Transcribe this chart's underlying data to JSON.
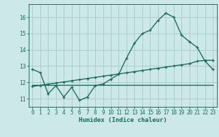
{
  "xlabel": "Humidex (Indice chaleur)",
  "background_color": "#cce8e8",
  "grid_color": "#aacccc",
  "line_color": "#1a6b5a",
  "xlim": [
    -0.5,
    23.5
  ],
  "ylim": [
    10.5,
    16.8
  ],
  "yticks": [
    11,
    12,
    13,
    14,
    15,
    16
  ],
  "xticks": [
    0,
    1,
    2,
    3,
    4,
    5,
    6,
    7,
    8,
    9,
    10,
    11,
    12,
    13,
    14,
    15,
    16,
    17,
    18,
    19,
    20,
    21,
    22,
    23
  ],
  "line1_x": [
    0,
    1,
    2,
    3,
    4,
    5,
    6,
    7,
    8,
    9,
    10,
    11,
    12,
    13,
    14,
    15,
    16,
    17,
    18,
    19,
    20,
    21,
    22,
    23
  ],
  "line1_y": [
    12.8,
    12.6,
    11.3,
    11.8,
    11.1,
    11.7,
    10.9,
    11.1,
    11.8,
    11.9,
    12.2,
    12.5,
    13.5,
    14.4,
    15.0,
    15.2,
    15.8,
    16.25,
    16.0,
    14.9,
    14.5,
    14.15,
    13.3,
    12.8
  ],
  "line2_x": [
    0,
    1,
    2,
    3,
    4,
    5,
    6,
    7,
    8,
    9,
    10,
    11,
    12,
    13,
    14,
    15,
    16,
    17,
    18,
    19,
    20,
    21,
    22,
    23
  ],
  "line2_y": [
    11.75,
    11.82,
    11.89,
    11.96,
    12.03,
    12.1,
    12.17,
    12.24,
    12.31,
    12.38,
    12.45,
    12.52,
    12.59,
    12.66,
    12.73,
    12.8,
    12.87,
    12.94,
    13.01,
    13.08,
    13.15,
    13.3,
    13.35,
    13.36
  ],
  "line3_x": [
    0,
    1,
    2,
    3,
    4,
    5,
    6,
    7,
    8,
    9,
    10,
    11,
    12,
    13,
    14,
    15,
    16,
    17,
    18,
    19,
    20,
    21,
    22,
    23
  ],
  "line3_y": [
    11.85,
    11.85,
    11.85,
    11.85,
    11.85,
    11.85,
    11.85,
    11.85,
    11.85,
    11.85,
    11.85,
    11.85,
    11.85,
    11.85,
    11.85,
    11.85,
    11.85,
    11.85,
    11.85,
    11.85,
    11.85,
    11.85,
    11.85,
    11.85
  ],
  "linewidth": 1.0,
  "font_color": "#1a6b5a",
  "tick_fontsize": 5.5,
  "xlabel_fontsize": 6.5
}
